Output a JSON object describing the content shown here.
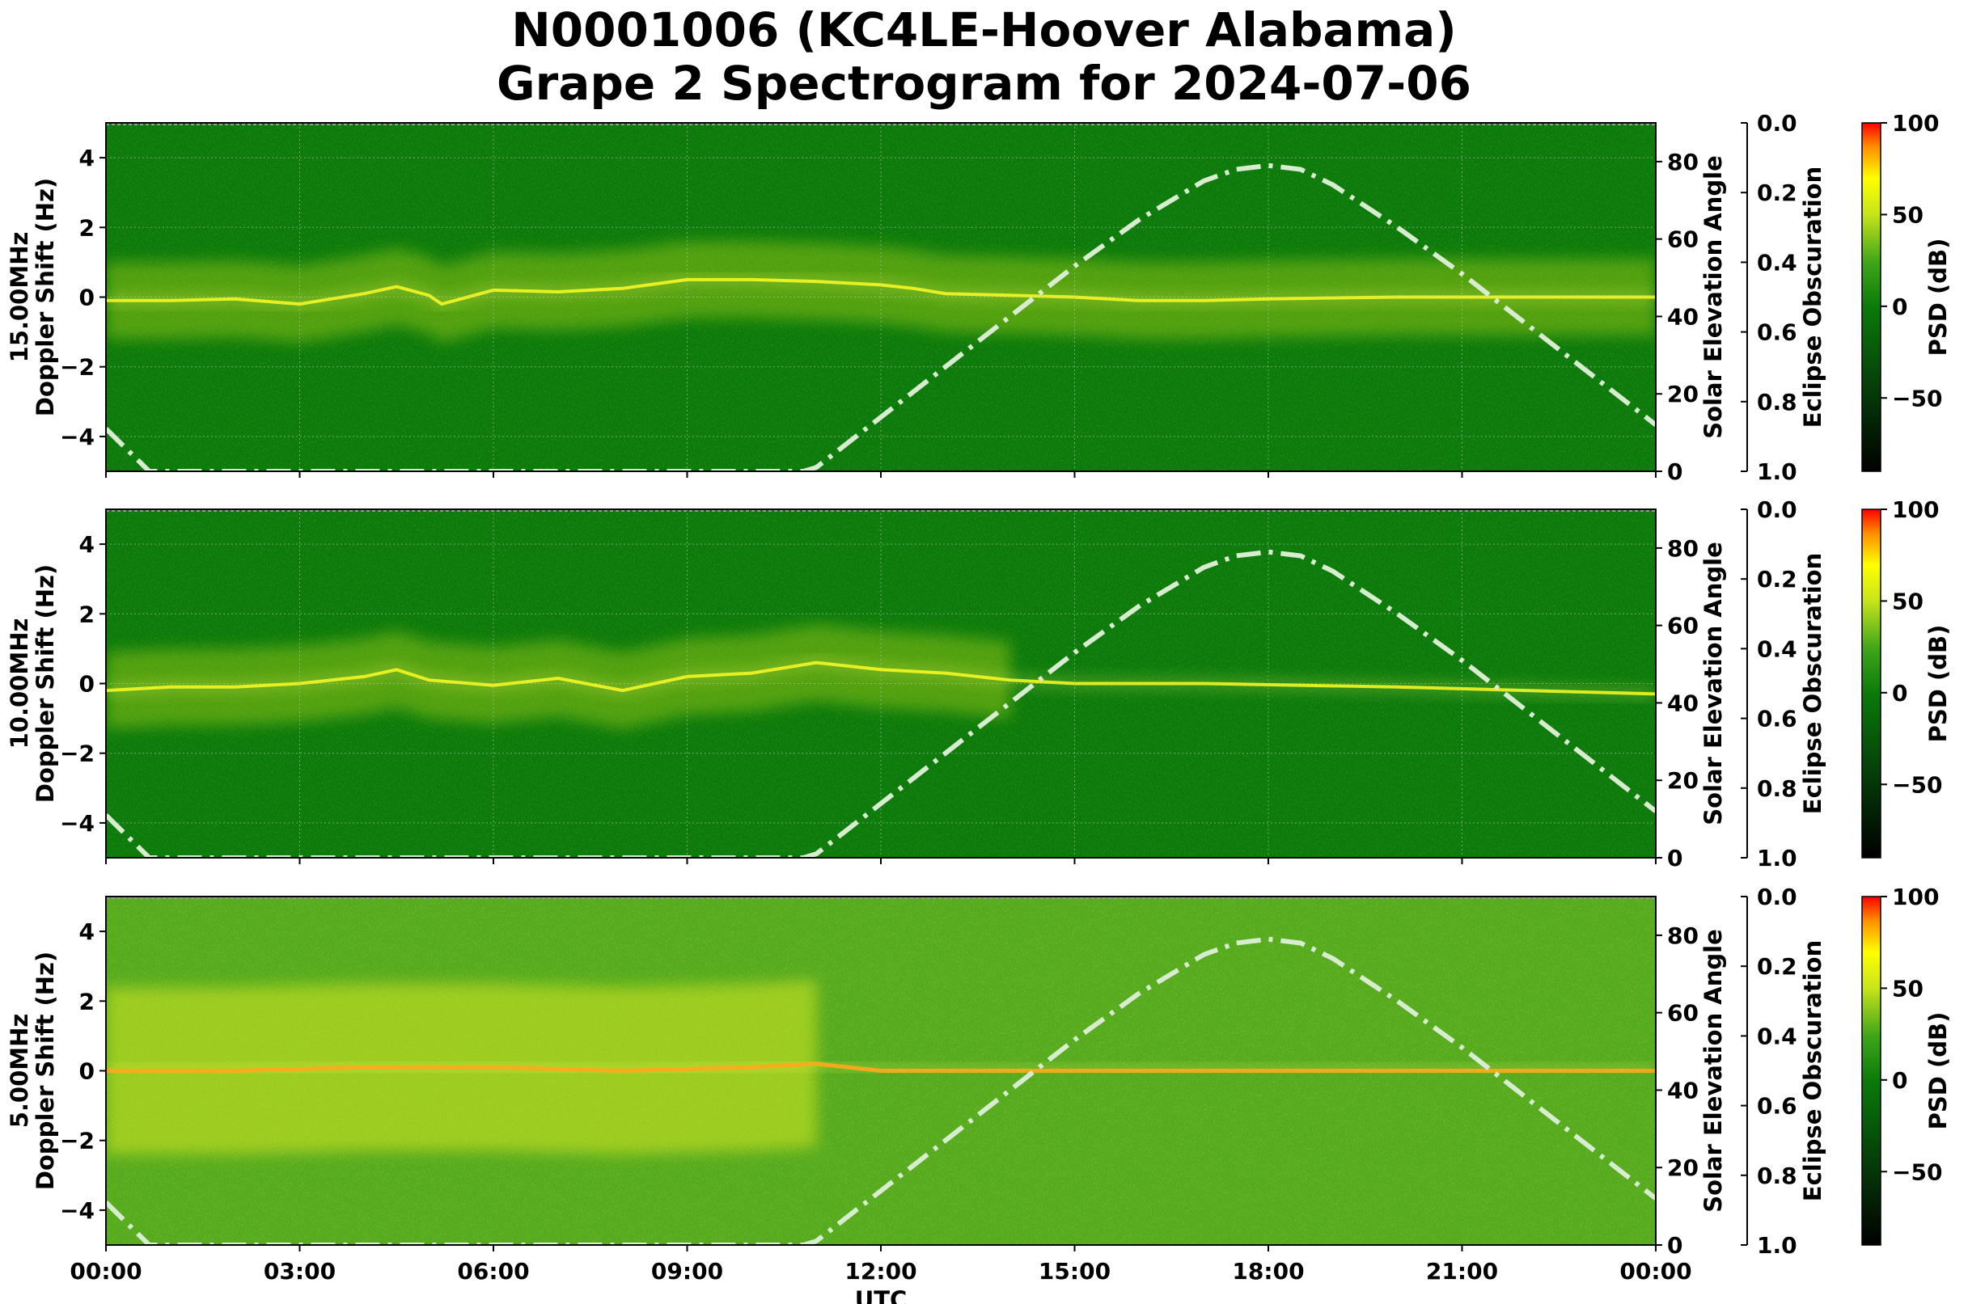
{
  "figure": {
    "title_line1": "N0001006 (KC4LE-Hoover Alabama)",
    "title_line2": "Grape 2 Spectrogram for 2024-07-06"
  },
  "chart_data": [
    {
      "type": "heatmap",
      "panel": "15.00MHz",
      "ylabel": "15.00MHz\nDoppler Shift (Hz)",
      "ylim": [
        -5,
        5
      ],
      "yticks": [
        "4",
        "2",
        "0",
        "−2",
        "−4"
      ],
      "xlim_hours": [
        0,
        24
      ],
      "xticks": [
        "00:00",
        "03:00",
        "06:00",
        "09:00",
        "12:00",
        "15:00",
        "18:00",
        "21:00",
        "00:00"
      ],
      "grid": true,
      "background_color": "#0b7a0b",
      "carrier_trace_hz": [
        [
          0,
          -0.1
        ],
        [
          1,
          -0.1
        ],
        [
          2,
          -0.05
        ],
        [
          3,
          -0.2
        ],
        [
          4,
          0.1
        ],
        [
          4.5,
          0.3
        ],
        [
          5,
          0.05
        ],
        [
          5.2,
          -0.2
        ],
        [
          6,
          0.2
        ],
        [
          7,
          0.15
        ],
        [
          8,
          0.25
        ],
        [
          9,
          0.5
        ],
        [
          10,
          0.5
        ],
        [
          11,
          0.45
        ],
        [
          12,
          0.35
        ],
        [
          12.5,
          0.25
        ],
        [
          13,
          0.1
        ],
        [
          14,
          0.05
        ],
        [
          15,
          0.0
        ],
        [
          16,
          -0.1
        ],
        [
          17,
          -0.1
        ],
        [
          18,
          -0.05
        ],
        [
          20,
          0.0
        ],
        [
          22,
          0.0
        ],
        [
          24,
          0.0
        ]
      ],
      "secondary_axes": [
        {
          "label": "Solar Elevation Angle",
          "ylim": [
            0,
            90
          ],
          "ticks": [
            "0",
            "20",
            "40",
            "60",
            "80"
          ]
        },
        {
          "label": "Eclipse Obscuration",
          "ylim": [
            1.0,
            0.0
          ],
          "ticks": [
            "0.0",
            "0.2",
            "0.4",
            "0.6",
            "0.8",
            "1.0"
          ]
        }
      ],
      "colorbar": {
        "label": "PSD (dB)",
        "ticks": [
          "100",
          "50",
          "0",
          "−50"
        ],
        "range": [
          -90,
          100
        ]
      }
    },
    {
      "type": "heatmap",
      "panel": "10.00MHz",
      "ylabel": "10.00MHz\nDoppler Shift (Hz)",
      "ylim": [
        -5,
        5
      ],
      "yticks": [
        "4",
        "2",
        "0",
        "−2",
        "−4"
      ],
      "xlim_hours": [
        0,
        24
      ],
      "xticks": [
        "00:00",
        "03:00",
        "06:00",
        "09:00",
        "12:00",
        "15:00",
        "18:00",
        "21:00",
        "00:00"
      ],
      "grid": true,
      "background_color": "#0b7a0b",
      "carrier_trace_hz": [
        [
          0,
          -0.2
        ],
        [
          1,
          -0.1
        ],
        [
          2,
          -0.1
        ],
        [
          3,
          0.0
        ],
        [
          4,
          0.2
        ],
        [
          4.5,
          0.4
        ],
        [
          5,
          0.1
        ],
        [
          6,
          -0.05
        ],
        [
          7,
          0.15
        ],
        [
          8,
          -0.2
        ],
        [
          9,
          0.2
        ],
        [
          10,
          0.3
        ],
        [
          11,
          0.6
        ],
        [
          12,
          0.4
        ],
        [
          13,
          0.3
        ],
        [
          14,
          0.1
        ],
        [
          15,
          0.0
        ],
        [
          17,
          0.0
        ],
        [
          20,
          -0.1
        ],
        [
          22,
          -0.2
        ],
        [
          24,
          -0.3
        ]
      ],
      "secondary_axes": [
        {
          "label": "Solar Elevation Angle",
          "ylim": [
            0,
            90
          ],
          "ticks": [
            "0",
            "20",
            "40",
            "60",
            "80"
          ]
        },
        {
          "label": "Eclipse Obscuration",
          "ylim": [
            1.0,
            0.0
          ],
          "ticks": [
            "0.0",
            "0.2",
            "0.4",
            "0.6",
            "0.8",
            "1.0"
          ]
        }
      ],
      "colorbar": {
        "label": "PSD (dB)",
        "ticks": [
          "100",
          "50",
          "0",
          "−50"
        ],
        "range": [
          -90,
          100
        ]
      }
    },
    {
      "type": "heatmap",
      "panel": "5.00MHz",
      "ylabel": "5.00MHz\nDoppler Shift (Hz)",
      "xlabel": "UTC",
      "ylim": [
        -5,
        5
      ],
      "yticks": [
        "4",
        "2",
        "0",
        "−2",
        "−4"
      ],
      "xlim_hours": [
        0,
        24
      ],
      "xticks": [
        "00:00",
        "03:00",
        "06:00",
        "09:00",
        "12:00",
        "15:00",
        "18:00",
        "21:00",
        "00:00"
      ],
      "grid": false,
      "background_color": "#55aa1e",
      "carrier_trace_hz": [
        [
          0,
          0.0
        ],
        [
          2,
          0.0
        ],
        [
          4,
          0.1
        ],
        [
          6,
          0.1
        ],
        [
          8,
          0.0
        ],
        [
          10,
          0.1
        ],
        [
          11,
          0.2
        ],
        [
          12,
          0.0
        ],
        [
          24,
          0.0
        ]
      ],
      "secondary_axes": [
        {
          "label": "Solar Elevation Angle",
          "ylim": [
            0,
            90
          ],
          "ticks": [
            "0",
            "20",
            "40",
            "60",
            "80"
          ]
        },
        {
          "label": "Eclipse Obscuration",
          "ylim": [
            1.0,
            0.0
          ],
          "ticks": [
            "0.0",
            "0.2",
            "0.4",
            "0.6",
            "0.8",
            "1.0"
          ]
        }
      ],
      "colorbar": {
        "label": "PSD (dB)",
        "ticks": [
          "100",
          "50",
          "0",
          "−50"
        ],
        "range": [
          -90,
          100
        ]
      }
    }
  ],
  "solar_elevation_deg": [
    [
      0,
      11
    ],
    [
      0.67,
      0
    ],
    [
      10.8,
      0
    ],
    [
      11,
      1
    ],
    [
      12,
      14
    ],
    [
      13,
      27
    ],
    [
      14,
      40
    ],
    [
      15,
      53
    ],
    [
      16,
      65
    ],
    [
      17,
      75
    ],
    [
      17.5,
      78
    ],
    [
      18,
      79
    ],
    [
      18.5,
      78
    ],
    [
      19,
      74
    ],
    [
      20,
      63
    ],
    [
      21,
      51
    ],
    [
      22,
      38
    ],
    [
      23,
      25
    ],
    [
      24,
      12
    ]
  ]
}
